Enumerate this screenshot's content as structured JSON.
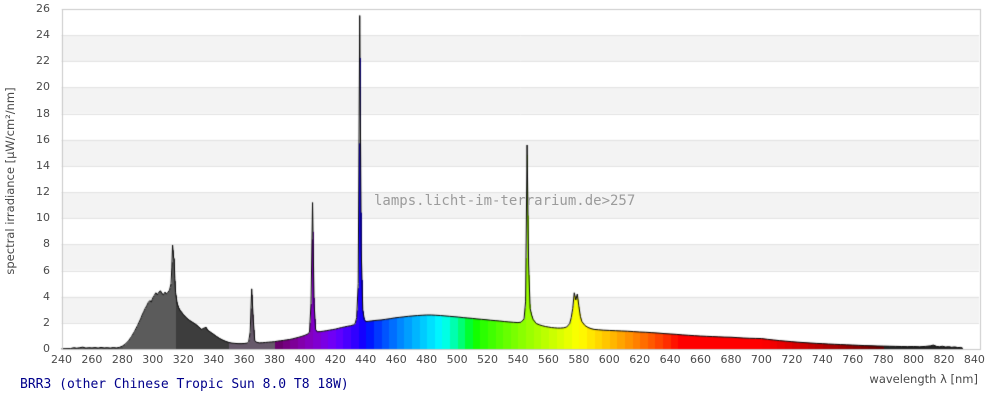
{
  "page": {
    "title": "BRR3 (other Chinese Tropic Sun 8.0 T8 18W)",
    "watermark": "lamps.licht-im-terrarium.de>257"
  },
  "colors": {
    "title_text": "#00008b",
    "watermark_text": "#9b9b9b",
    "tick_text": "#4a4a4a",
    "band_fill": "#f3f3f3",
    "gridline": "#e2e2e2",
    "frame": "#c8c8c8",
    "outline": "#000000"
  },
  "chart_data": {
    "type": "area",
    "title": "BRR3 (other Chinese Tropic Sun 8.0 T8 18W)",
    "xlabel": "wavelength λ [nm]",
    "ylabel": "spectral irradiance [µW/cm²/nm]",
    "xlim": [
      240,
      843
    ],
    "ylim": [
      0,
      26
    ],
    "x_ticks": [
      240,
      260,
      280,
      300,
      320,
      340,
      360,
      380,
      400,
      420,
      440,
      460,
      480,
      500,
      520,
      540,
      560,
      580,
      600,
      620,
      640,
      660,
      680,
      700,
      720,
      740,
      760,
      780,
      800,
      820,
      840
    ],
    "y_ticks": [
      0,
      2,
      4,
      6,
      8,
      10,
      12,
      14,
      16,
      18,
      20,
      22,
      24,
      26
    ],
    "grid": "horizontal bands every 2 units, alternating white / light gray, gridlines at even values",
    "legend": "none",
    "fill_style": "area filled with 5 nm strips colored by wavelength (visible spectrum); UV region gray shades; black outline on curve",
    "uv_band_colors": {
      "below_280": "#4f4f4f",
      "280_315": "#5b5b5b",
      "315_350": "#3d3d3d",
      "350_380": "#66596a",
      "above_780": "#242424"
    },
    "peaks": [
      {
        "wavelength": 313,
        "value": 8.0
      },
      {
        "wavelength": 365,
        "value": 4.6
      },
      {
        "wavelength": 405,
        "value": 11.2
      },
      {
        "wavelength": 436,
        "value": 25.5
      },
      {
        "wavelength": 546,
        "value": 15.6
      },
      {
        "wavelength": 578,
        "value": 4.3
      }
    ],
    "series": [
      {
        "name": "spectral irradiance",
        "points": [
          [
            240,
            0.02
          ],
          [
            246,
            0.03
          ],
          [
            248,
            0.1
          ],
          [
            250,
            0.06
          ],
          [
            252,
            0.1
          ],
          [
            254,
            0.14
          ],
          [
            256,
            0.07
          ],
          [
            258,
            0.1
          ],
          [
            260,
            0.08
          ],
          [
            262,
            0.11
          ],
          [
            264,
            0.07
          ],
          [
            266,
            0.12
          ],
          [
            268,
            0.08
          ],
          [
            270,
            0.1
          ],
          [
            272,
            0.07
          ],
          [
            274,
            0.11
          ],
          [
            276,
            0.08
          ],
          [
            278,
            0.12
          ],
          [
            280,
            0.22
          ],
          [
            282,
            0.38
          ],
          [
            284,
            0.62
          ],
          [
            286,
            0.95
          ],
          [
            288,
            1.35
          ],
          [
            290,
            1.8
          ],
          [
            291,
            2.05
          ],
          [
            292,
            2.3
          ],
          [
            293,
            2.6
          ],
          [
            294,
            2.85
          ],
          [
            295,
            3.1
          ],
          [
            296,
            3.3
          ],
          [
            297,
            3.55
          ],
          [
            298,
            3.7
          ],
          [
            299,
            3.6
          ],
          [
            300,
            3.9
          ],
          [
            301,
            4.1
          ],
          [
            302,
            4.3
          ],
          [
            303,
            4.15
          ],
          [
            304,
            4.35
          ],
          [
            305,
            4.45
          ],
          [
            306,
            4.25
          ],
          [
            307,
            4.15
          ],
          [
            308,
            4.35
          ],
          [
            309,
            4.2
          ],
          [
            310,
            4.35
          ],
          [
            311,
            4.5
          ],
          [
            312,
            5.0
          ],
          [
            312.5,
            6.2
          ],
          [
            313,
            7.95
          ],
          [
            313.7,
            6.95
          ],
          [
            314,
            6.9
          ],
          [
            314.5,
            5.4
          ],
          [
            315,
            4.3
          ],
          [
            316,
            3.5
          ],
          [
            317,
            3.15
          ],
          [
            318,
            2.95
          ],
          [
            319,
            2.8
          ],
          [
            320,
            2.65
          ],
          [
            322,
            2.4
          ],
          [
            324,
            2.2
          ],
          [
            326,
            2.05
          ],
          [
            328,
            1.9
          ],
          [
            330,
            1.72
          ],
          [
            332,
            1.5
          ],
          [
            334,
            1.62
          ],
          [
            335,
            1.66
          ],
          [
            336,
            1.45
          ],
          [
            338,
            1.28
          ],
          [
            340,
            1.12
          ],
          [
            342,
            0.95
          ],
          [
            344,
            0.8
          ],
          [
            346,
            0.68
          ],
          [
            348,
            0.58
          ],
          [
            350,
            0.5
          ],
          [
            352,
            0.45
          ],
          [
            354,
            0.43
          ],
          [
            356,
            0.41
          ],
          [
            358,
            0.41
          ],
          [
            360,
            0.42
          ],
          [
            362,
            0.45
          ],
          [
            363,
            0.55
          ],
          [
            364,
            1.3
          ],
          [
            365,
            4.6
          ],
          [
            366,
            2.3
          ],
          [
            367,
            0.65
          ],
          [
            368,
            0.52
          ],
          [
            370,
            0.47
          ],
          [
            372,
            0.48
          ],
          [
            374,
            0.5
          ],
          [
            376,
            0.52
          ],
          [
            378,
            0.54
          ],
          [
            380,
            0.56
          ],
          [
            382,
            0.6
          ],
          [
            384,
            0.63
          ],
          [
            386,
            0.66
          ],
          [
            388,
            0.7
          ],
          [
            390,
            0.73
          ],
          [
            392,
            0.78
          ],
          [
            394,
            0.84
          ],
          [
            396,
            0.9
          ],
          [
            398,
            0.97
          ],
          [
            400,
            1.05
          ],
          [
            402,
            1.15
          ],
          [
            403,
            1.3
          ],
          [
            404,
            3.5
          ],
          [
            405,
            11.2
          ],
          [
            406,
            3.5
          ],
          [
            407,
            1.5
          ],
          [
            408,
            1.32
          ],
          [
            410,
            1.33
          ],
          [
            412,
            1.36
          ],
          [
            414,
            1.4
          ],
          [
            416,
            1.44
          ],
          [
            418,
            1.48
          ],
          [
            420,
            1.52
          ],
          [
            422,
            1.58
          ],
          [
            424,
            1.64
          ],
          [
            426,
            1.69
          ],
          [
            428,
            1.74
          ],
          [
            430,
            1.78
          ],
          [
            432,
            1.85
          ],
          [
            433,
            1.95
          ],
          [
            434,
            2.4
          ],
          [
            435,
            5.0
          ],
          [
            436,
            25.5
          ],
          [
            437,
            7.5
          ],
          [
            438,
            3.0
          ],
          [
            439,
            2.25
          ],
          [
            440,
            2.1
          ],
          [
            442,
            2.12
          ],
          [
            444,
            2.15
          ],
          [
            446,
            2.18
          ],
          [
            448,
            2.2
          ],
          [
            450,
            2.22
          ],
          [
            453,
            2.27
          ],
          [
            456,
            2.32
          ],
          [
            459,
            2.38
          ],
          [
            462,
            2.42
          ],
          [
            465,
            2.46
          ],
          [
            468,
            2.5
          ],
          [
            471,
            2.53
          ],
          [
            474,
            2.56
          ],
          [
            477,
            2.58
          ],
          [
            480,
            2.6
          ],
          [
            483,
            2.6
          ],
          [
            486,
            2.58
          ],
          [
            489,
            2.56
          ],
          [
            492,
            2.53
          ],
          [
            495,
            2.5
          ],
          [
            498,
            2.47
          ],
          [
            501,
            2.44
          ],
          [
            504,
            2.4
          ],
          [
            507,
            2.37
          ],
          [
            510,
            2.34
          ],
          [
            513,
            2.3
          ],
          [
            516,
            2.27
          ],
          [
            519,
            2.24
          ],
          [
            522,
            2.2
          ],
          [
            525,
            2.17
          ],
          [
            528,
            2.14
          ],
          [
            531,
            2.1
          ],
          [
            534,
            2.07
          ],
          [
            537,
            2.04
          ],
          [
            540,
            2.02
          ],
          [
            542,
            2.05
          ],
          [
            544,
            2.3
          ],
          [
            545,
            3.6
          ],
          [
            546,
            15.6
          ],
          [
            547,
            6.5
          ],
          [
            548,
            3.1
          ],
          [
            549,
            2.6
          ],
          [
            550,
            2.25
          ],
          [
            552,
            1.95
          ],
          [
            554,
            1.85
          ],
          [
            556,
            1.78
          ],
          [
            558,
            1.72
          ],
          [
            560,
            1.68
          ],
          [
            562,
            1.64
          ],
          [
            564,
            1.62
          ],
          [
            566,
            1.6
          ],
          [
            568,
            1.6
          ],
          [
            570,
            1.62
          ],
          [
            572,
            1.68
          ],
          [
            574,
            1.95
          ],
          [
            575,
            2.4
          ],
          [
            576,
            3.1
          ],
          [
            577,
            4.3
          ],
          [
            578,
            3.75
          ],
          [
            579,
            4.2
          ],
          [
            580,
            3.3
          ],
          [
            581,
            2.5
          ],
          [
            582,
            2.1
          ],
          [
            584,
            1.8
          ],
          [
            586,
            1.65
          ],
          [
            588,
            1.56
          ],
          [
            590,
            1.5
          ],
          [
            593,
            1.47
          ],
          [
            596,
            1.44
          ],
          [
            600,
            1.42
          ],
          [
            604,
            1.4
          ],
          [
            608,
            1.38
          ],
          [
            612,
            1.36
          ],
          [
            616,
            1.33
          ],
          [
            620,
            1.3
          ],
          [
            624,
            1.28
          ],
          [
            628,
            1.25
          ],
          [
            632,
            1.22
          ],
          [
            636,
            1.18
          ],
          [
            640,
            1.15
          ],
          [
            644,
            1.12
          ],
          [
            648,
            1.08
          ],
          [
            652,
            1.05
          ],
          [
            656,
            1.02
          ],
          [
            660,
            0.99
          ],
          [
            664,
            0.97
          ],
          [
            668,
            0.95
          ],
          [
            672,
            0.93
          ],
          [
            676,
            0.91
          ],
          [
            680,
            0.9
          ],
          [
            684,
            0.87
          ],
          [
            688,
            0.84
          ],
          [
            692,
            0.82
          ],
          [
            696,
            0.81
          ],
          [
            700,
            0.8
          ],
          [
            704,
            0.74
          ],
          [
            708,
            0.69
          ],
          [
            712,
            0.64
          ],
          [
            716,
            0.6
          ],
          [
            720,
            0.56
          ],
          [
            724,
            0.52
          ],
          [
            728,
            0.49
          ],
          [
            732,
            0.46
          ],
          [
            736,
            0.43
          ],
          [
            740,
            0.41
          ],
          [
            744,
            0.38
          ],
          [
            748,
            0.36
          ],
          [
            752,
            0.34
          ],
          [
            756,
            0.32
          ],
          [
            760,
            0.3
          ],
          [
            764,
            0.28
          ],
          [
            768,
            0.26
          ],
          [
            772,
            0.25
          ],
          [
            776,
            0.23
          ],
          [
            780,
            0.22
          ],
          [
            784,
            0.21
          ],
          [
            788,
            0.2
          ],
          [
            792,
            0.19
          ],
          [
            796,
            0.18
          ],
          [
            800,
            0.19
          ],
          [
            804,
            0.17
          ],
          [
            808,
            0.2
          ],
          [
            811,
            0.24
          ],
          [
            813,
            0.3
          ],
          [
            815,
            0.2
          ],
          [
            817,
            0.17
          ],
          [
            819,
            0.21
          ],
          [
            821,
            0.15
          ],
          [
            823,
            0.18
          ],
          [
            825,
            0.13
          ],
          [
            827,
            0.16
          ],
          [
            829,
            0.11
          ],
          [
            831,
            0.12
          ],
          [
            832,
            0.08
          ]
        ]
      }
    ]
  }
}
